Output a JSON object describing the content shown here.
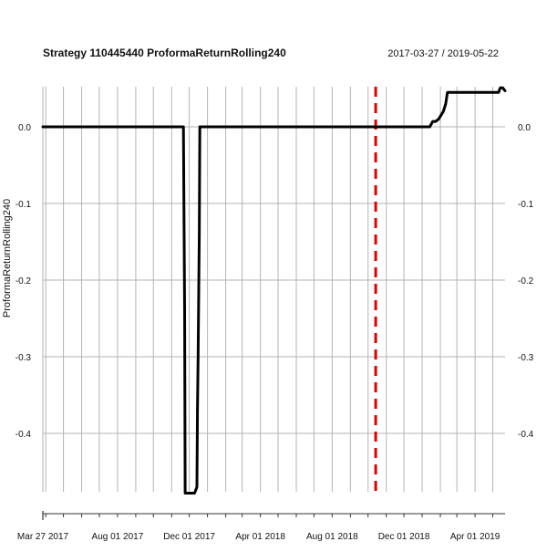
{
  "chart_data": {
    "type": "line",
    "title": "Strategy 110445440 ProformaReturnRolling240",
    "date_range": "2017-03-27 / 2019-05-22",
    "xlabel": "",
    "ylabel": "ProformaReturnRolling240",
    "x_range": [
      "2017-03-27",
      "2019-05-22"
    ],
    "ylim": [
      -0.48,
      0.055
    ],
    "y_ticks": [
      0.0,
      -0.1,
      -0.2,
      -0.3,
      -0.4
    ],
    "y_tick_labels": [
      "0.0",
      "-0.1",
      "-0.2",
      "-0.3",
      "-0.4"
    ],
    "x_tick_labels": [
      {
        "date": "2017-03-27",
        "label": "Mar 27 2017"
      },
      {
        "date": "2017-08-01",
        "label": "Aug 01 2017"
      },
      {
        "date": "2017-12-01",
        "label": "Dec 01 2017"
      },
      {
        "date": "2018-04-01",
        "label": "Apr 01 2018"
      },
      {
        "date": "2018-08-01",
        "label": "Aug 01 2018"
      },
      {
        "date": "2018-12-01",
        "label": "Dec 01 2018"
      },
      {
        "date": "2019-04-01",
        "label": "Apr 01 2019"
      }
    ],
    "grid": true,
    "grid_color": "#b3b3b3",
    "line_color": "#000000",
    "marker_line": {
      "date": "2018-10-14",
      "style": "dashed",
      "color": "#dd0000"
    },
    "series": [
      {
        "points": [
          [
            "2017-03-27",
            0.0
          ],
          [
            "2017-11-21",
            0.0
          ],
          [
            "2017-11-23",
            -0.24
          ],
          [
            "2017-11-24",
            -0.478
          ],
          [
            "2017-12-10",
            -0.478
          ],
          [
            "2017-12-14",
            -0.47
          ],
          [
            "2017-12-15",
            -0.37
          ],
          [
            "2017-12-16",
            -0.3
          ],
          [
            "2017-12-18",
            -0.14
          ],
          [
            "2017-12-19",
            0.0
          ],
          [
            "2019-01-14",
            0.0
          ],
          [
            "2019-01-19",
            0.007
          ],
          [
            "2019-01-24",
            0.007
          ],
          [
            "2019-01-29",
            0.01
          ],
          [
            "2019-02-06",
            0.02
          ],
          [
            "2019-02-10",
            0.03
          ],
          [
            "2019-02-13",
            0.045
          ],
          [
            "2019-05-11",
            0.045
          ],
          [
            "2019-05-14",
            0.051
          ],
          [
            "2019-05-18",
            0.051
          ],
          [
            "2019-05-22",
            0.047
          ]
        ]
      }
    ]
  }
}
